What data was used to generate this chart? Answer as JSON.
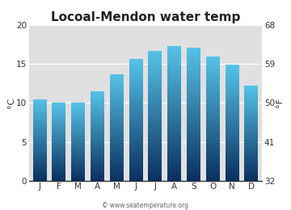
{
  "title": "Locoal-Mendon water temp",
  "months": [
    "J",
    "F",
    "M",
    "A",
    "M",
    "J",
    "J",
    "A",
    "S",
    "O",
    "N",
    "D"
  ],
  "values_c": [
    10.5,
    10.0,
    10.0,
    11.5,
    13.7,
    15.7,
    16.7,
    17.3,
    17.1,
    16.0,
    14.9,
    12.2
  ],
  "ylim_c": [
    0,
    20
  ],
  "yticks_c": [
    0,
    5,
    10,
    15,
    20
  ],
  "yticks_f": [
    32,
    41,
    50,
    59,
    68
  ],
  "ylabel_left": "°C",
  "ylabel_right": "°F",
  "bar_color_top": "#56c4e8",
  "bar_color_bottom": "#0a3060",
  "fig_bg_color": "#ffffff",
  "plot_bg_color": "#e0e0e0",
  "watermark": "© www.seatemperature.org",
  "title_fontsize": 11,
  "axis_fontsize": 8,
  "tick_fontsize": 7.5,
  "bar_width": 0.72
}
